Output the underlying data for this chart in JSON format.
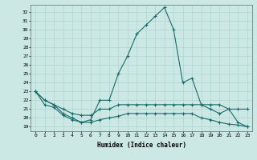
{
  "xlabel": "Humidex (Indice chaleur)",
  "background_color": "#cce8e4",
  "grid_color": "#b0d4d0",
  "line_color": "#1a6b6b",
  "ylim": [
    18.5,
    32.8
  ],
  "xlim": [
    -0.5,
    23.5
  ],
  "yticks": [
    19,
    20,
    21,
    22,
    23,
    24,
    25,
    26,
    27,
    28,
    29,
    30,
    31,
    32
  ],
  "xticks": [
    0,
    1,
    2,
    3,
    4,
    5,
    6,
    7,
    8,
    9,
    10,
    11,
    12,
    13,
    14,
    15,
    16,
    17,
    18,
    19,
    20,
    21,
    22,
    23
  ],
  "line1_x": [
    0,
    1,
    2,
    3,
    4,
    5,
    6,
    7,
    8,
    9,
    10,
    11,
    12,
    13,
    14,
    15,
    16,
    17,
    18,
    19,
    20,
    21,
    22,
    23
  ],
  "line1_y": [
    23.0,
    22.0,
    21.5,
    21.0,
    20.5,
    20.3,
    20.3,
    21.0,
    21.0,
    21.5,
    21.5,
    21.5,
    21.5,
    21.5,
    21.5,
    21.5,
    21.5,
    21.5,
    21.5,
    21.5,
    21.5,
    21.0,
    21.0,
    21.0
  ],
  "line2_x": [
    0,
    1,
    2,
    3,
    4,
    5,
    6,
    7,
    8,
    9,
    10,
    11,
    12,
    13,
    14,
    15,
    16,
    17,
    18,
    19,
    20,
    21,
    22,
    23
  ],
  "line2_y": [
    23.0,
    22.0,
    21.5,
    20.5,
    20.0,
    19.5,
    19.8,
    22.0,
    22.0,
    25.0,
    27.0,
    29.5,
    30.5,
    31.5,
    32.5,
    30.0,
    24.0,
    24.5,
    21.5,
    21.0,
    20.5,
    21.0,
    19.5,
    19.0
  ],
  "line3_x": [
    0,
    1,
    2,
    3,
    4,
    5,
    6,
    7,
    8,
    9,
    10,
    11,
    12,
    13,
    14,
    15,
    16,
    17,
    18,
    19,
    20,
    21,
    22,
    23
  ],
  "line3_y": [
    23.0,
    21.5,
    21.2,
    20.3,
    19.8,
    19.5,
    19.5,
    19.8,
    20.0,
    20.2,
    20.5,
    20.5,
    20.5,
    20.5,
    20.5,
    20.5,
    20.5,
    20.5,
    20.0,
    19.8,
    19.5,
    19.3,
    19.2,
    19.0
  ]
}
